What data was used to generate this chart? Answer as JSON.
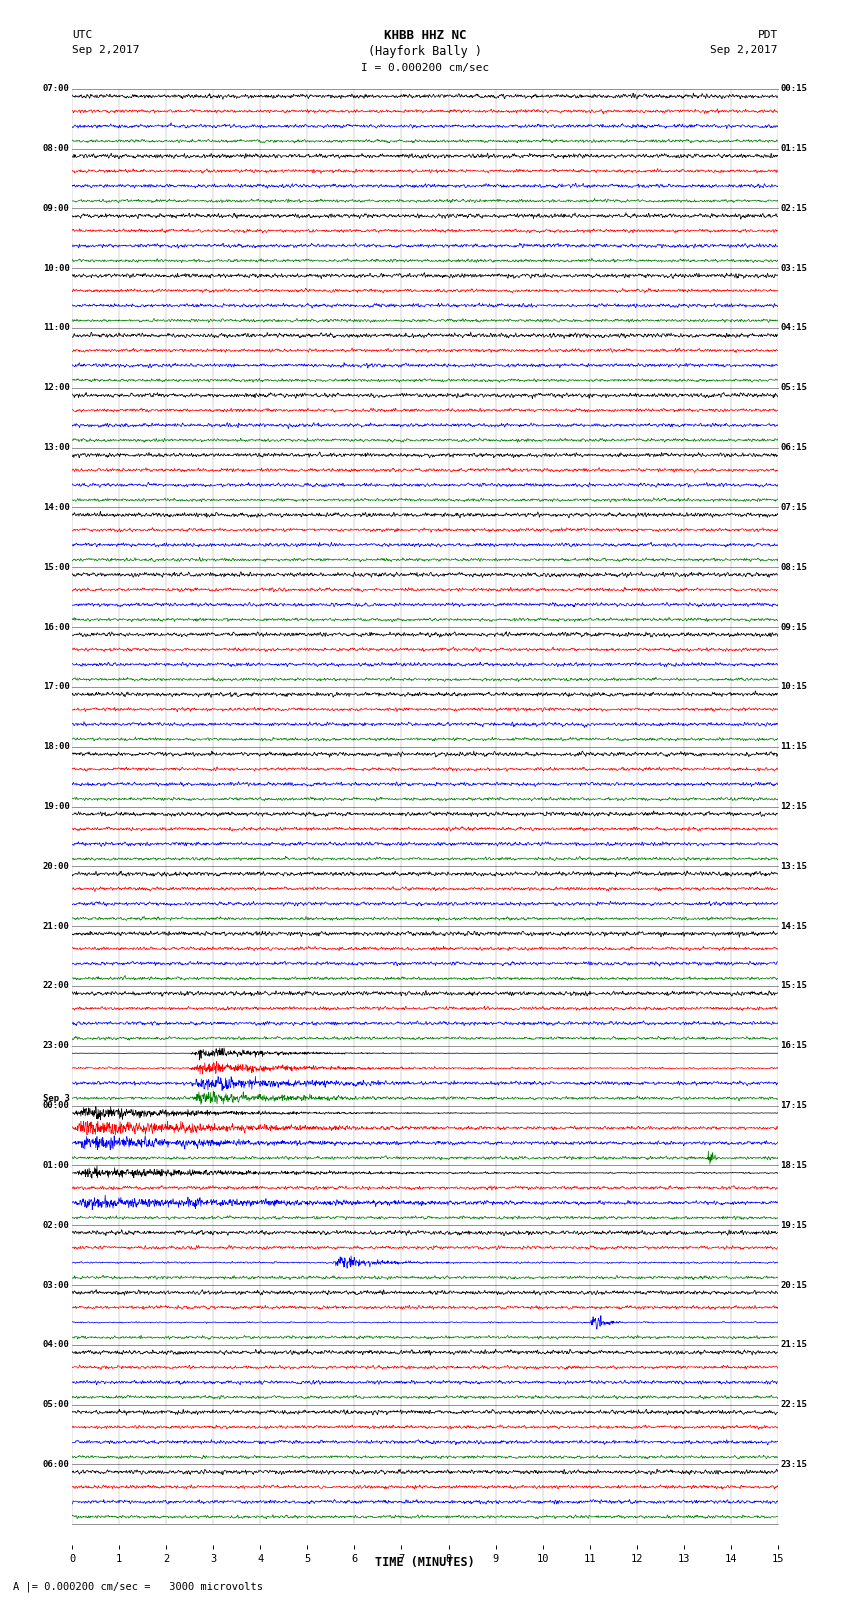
{
  "title_line1": "KHBB HHZ NC",
  "title_line2": "(Hayfork Bally )",
  "title_scale": "I = 0.000200 cm/sec",
  "utc_label": "UTC",
  "utc_date": "Sep 2,2017",
  "pdt_label": "PDT",
  "pdt_date": "Sep 2,2017",
  "xlabel": "TIME (MINUTES)",
  "bottom_label": "A |= 0.000200 cm/sec =   3000 microvolts",
  "left_times": [
    "07:00",
    "08:00",
    "09:00",
    "10:00",
    "11:00",
    "12:00",
    "13:00",
    "14:00",
    "15:00",
    "16:00",
    "17:00",
    "18:00",
    "19:00",
    "20:00",
    "21:00",
    "22:00",
    "23:00",
    "00:00",
    "01:00",
    "02:00",
    "03:00",
    "04:00",
    "05:00",
    "06:00"
  ],
  "right_times": [
    "00:15",
    "01:15",
    "02:15",
    "03:15",
    "04:15",
    "05:15",
    "06:15",
    "07:15",
    "08:15",
    "09:15",
    "10:15",
    "11:15",
    "12:15",
    "13:15",
    "14:15",
    "15:15",
    "16:15",
    "17:15",
    "18:15",
    "19:15",
    "20:15",
    "21:15",
    "22:15",
    "23:15"
  ],
  "sep3_row": 17,
  "n_rows": 24,
  "n_traces": 4,
  "minutes_per_row": 15,
  "colors": [
    "black",
    "red",
    "blue",
    "green"
  ],
  "bg_color": "white",
  "line_width": 0.5,
  "fig_width": 8.5,
  "fig_height": 16.13,
  "quake_row": 16,
  "quake_minute": 2.5,
  "quake_black_amp": 12.0,
  "quake_black_row17_amp": 8.0,
  "quake_black_row18_amp": 2.5,
  "small_quake_blue_row19_minute": 5.5,
  "small_quake_blue_row19_amp": 3.0,
  "small_quake_blue_row20_minute": 11.0,
  "small_quake_blue_row20_amp": 5.0,
  "green_burst_row17_minute": 13.5,
  "green_burst_row17_amp": 4.0,
  "noise_amp": 0.4,
  "pts_per_row": 1800
}
